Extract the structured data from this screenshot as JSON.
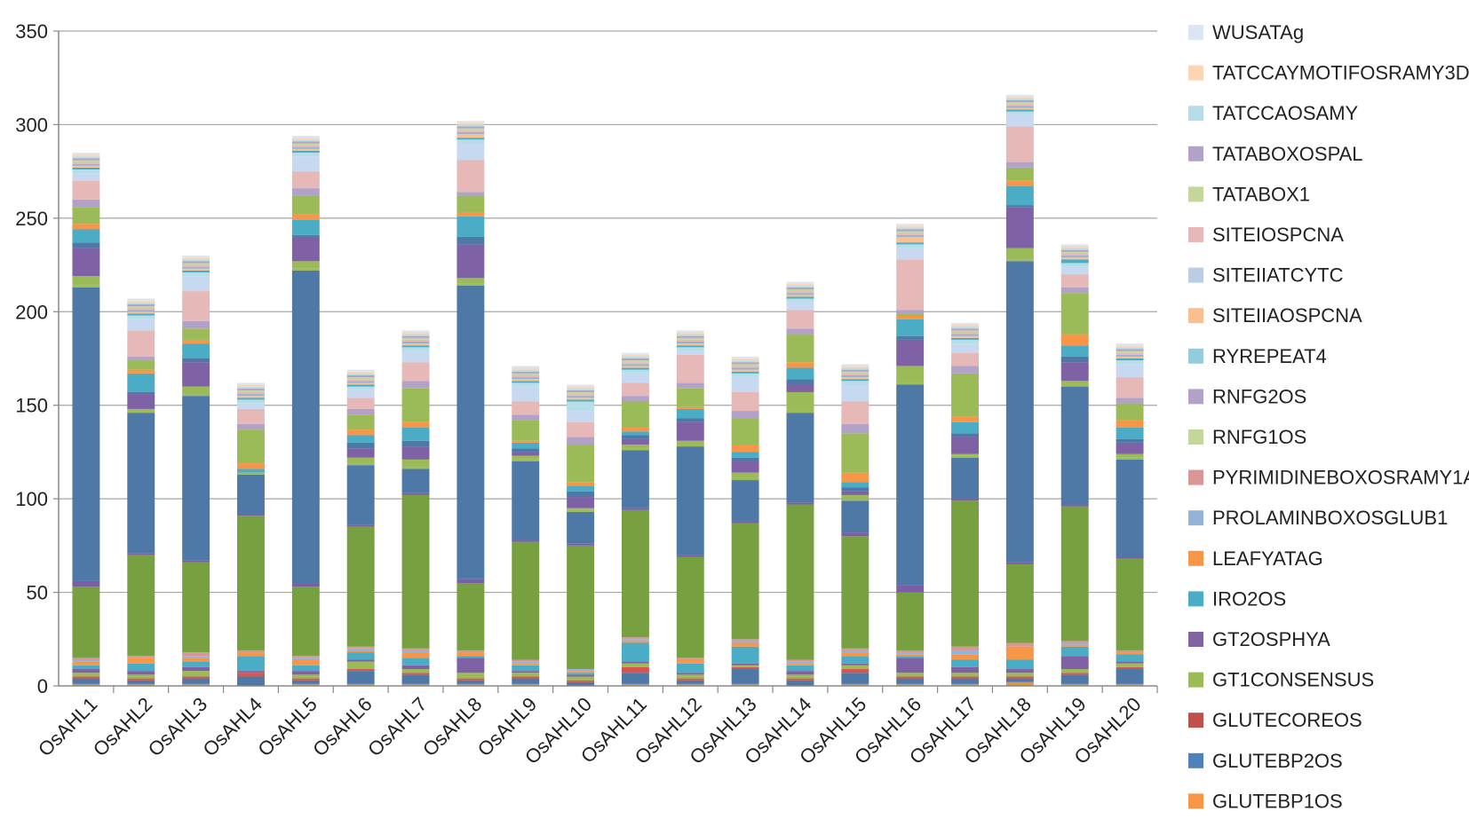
{
  "chart_data": {
    "type": "bar",
    "stacked": true,
    "title": "",
    "xlabel": "",
    "ylabel": "",
    "ylim": [
      0,
      350
    ],
    "yticks": [
      0,
      50,
      100,
      150,
      200,
      250,
      300,
      350
    ],
    "grid": true,
    "legend_position": "right",
    "categories": [
      "OsAHL1",
      "OsAHL2",
      "OsAHL3",
      "OsAHL4",
      "OsAHL5",
      "OsAHL6",
      "OsAHL7",
      "OsAHL8",
      "OsAHL9",
      "OsAHL10",
      "OsAHL11",
      "OsAHL12",
      "OsAHL13",
      "OsAHL14",
      "OsAHL15",
      "OsAHL16",
      "OsAHL17",
      "OsAHL18",
      "OsAHL19",
      "OsAHL20"
    ],
    "series": [
      {
        "name": "GLUTEBP1OS",
        "color": "#f28e2b",
        "values": [
          1,
          1,
          1,
          0,
          1,
          1,
          1,
          1,
          1,
          0,
          1,
          1,
          1,
          0,
          1,
          1,
          1,
          2,
          1,
          1
        ]
      },
      {
        "name": "GLUTEBP2OS",
        "color": "#4e79a7",
        "values": [
          3,
          2,
          3,
          5,
          2,
          7,
          5,
          2,
          3,
          2,
          6,
          2,
          8,
          3,
          6,
          3,
          3,
          2,
          5,
          8
        ]
      },
      {
        "name": "GLUTECOREOS",
        "color": "#d9534f",
        "values": [
          1,
          1,
          1,
          2,
          1,
          1,
          1,
          1,
          1,
          1,
          3,
          1,
          1,
          1,
          2,
          1,
          1,
          1,
          1,
          1
        ]
      },
      {
        "name": "GT1CONSENSUS",
        "color": "#9bbb59",
        "values": [
          2,
          2,
          3,
          0,
          2,
          4,
          2,
          3,
          2,
          2,
          2,
          2,
          1,
          2,
          2,
          2,
          2,
          2,
          2,
          2
        ]
      },
      {
        "name": "GT2OSPHYA",
        "color": "#7f62a6",
        "values": [
          2,
          2,
          2,
          1,
          2,
          1,
          2,
          8,
          1,
          1,
          1,
          1,
          1,
          2,
          1,
          8,
          3,
          2,
          7,
          1
        ]
      },
      {
        "name": "IRO2OS",
        "color": "#4bacc6",
        "values": [
          2,
          4,
          3,
          8,
          3,
          4,
          4,
          1,
          3,
          1,
          10,
          5,
          9,
          3,
          4,
          1,
          4,
          5,
          5,
          4
        ]
      },
      {
        "name": "LEAFYATAG",
        "color": "#f79646",
        "values": [
          2,
          3,
          2,
          2,
          3,
          1,
          3,
          2,
          1,
          1,
          1,
          2,
          2,
          1,
          2,
          1,
          3,
          7,
          1,
          1
        ]
      },
      {
        "name": "PROLAMINBOXOSGLUB1",
        "color": "#8eb4e3",
        "values": [
          1,
          0,
          1,
          0,
          1,
          1,
          1,
          0,
          1,
          1,
          1,
          0,
          1,
          1,
          1,
          1,
          2,
          0,
          1,
          0
        ]
      },
      {
        "name": "PYRIMIDINEBOXOSRAMY1A",
        "color": "#d99694",
        "values": [
          1,
          1,
          2,
          1,
          1,
          1,
          1,
          1,
          1,
          0,
          1,
          1,
          1,
          1,
          1,
          1,
          2,
          2,
          1,
          1
        ]
      },
      {
        "name": "RNFG1OS",
        "color": "#77a040",
        "values": [
          38,
          54,
          48,
          72,
          37,
          64,
          82,
          36,
          63,
          66,
          68,
          54,
          62,
          83,
          60,
          31,
          78,
          42,
          72,
          49
        ]
      },
      {
        "name": "RNFG2OS",
        "color": "#7b5ea7",
        "values": [
          3,
          1,
          1,
          1,
          2,
          1,
          1,
          2,
          1,
          1,
          1,
          1,
          1,
          1,
          2,
          4,
          1,
          1,
          1,
          1
        ]
      },
      {
        "name": "RYREPEAT4",
        "color": "#4bacc6",
        "values": [
          1,
          1,
          1,
          1,
          1,
          1,
          1,
          1,
          1,
          1,
          1,
          1,
          1,
          1,
          1,
          1,
          1,
          1,
          2,
          1
        ]
      },
      {
        "name": "SITEIIAOSPCNA",
        "color": "#fabf8f",
        "values": [
          1,
          1,
          1,
          1,
          1,
          1,
          1,
          2,
          1,
          1,
          1,
          1,
          1,
          1,
          1,
          3,
          1,
          1,
          1,
          1
        ]
      },
      {
        "name": "SITEIIATCYTC",
        "color": "#95b3d7",
        "values": [
          1,
          1,
          1,
          1,
          1,
          1,
          1,
          1,
          1,
          1,
          1,
          1,
          1,
          1,
          1,
          1,
          1,
          1,
          1,
          1
        ]
      },
      {
        "name": "SITEIOSPCNA",
        "color": "#e6b8b7",
        "values": [
          1,
          1,
          1,
          1,
          1,
          1,
          1,
          1,
          1,
          1,
          1,
          1,
          1,
          1,
          1,
          1,
          1,
          1,
          1,
          1
        ]
      },
      {
        "name": "TATABOX1",
        "color": "#c3d69b",
        "values": [
          1,
          1,
          1,
          1,
          1,
          1,
          1,
          1,
          1,
          1,
          1,
          1,
          1,
          1,
          1,
          1,
          1,
          1,
          1,
          1
        ]
      },
      {
        "name": "TATABOXOSPAL",
        "color": "#b3a2c7",
        "values": [
          1,
          1,
          1,
          1,
          1,
          1,
          1,
          1,
          1,
          1,
          1,
          1,
          1,
          1,
          1,
          1,
          1,
          1,
          1,
          1
        ]
      },
      {
        "name": "TATCCAOSAMY",
        "color": "#b7dee8",
        "values": [
          1,
          1,
          1,
          1,
          1,
          1,
          1,
          1,
          1,
          1,
          1,
          1,
          1,
          1,
          1,
          1,
          1,
          1,
          1,
          1
        ]
      },
      {
        "name": "TATCCAYMOTIFOSRAMY3D",
        "color": "#fcd5b4",
        "values": [
          1,
          1,
          1,
          1,
          1,
          1,
          1,
          1,
          1,
          1,
          1,
          1,
          1,
          1,
          1,
          1,
          1,
          1,
          1,
          1
        ]
      },
      {
        "name": "WUSATAg",
        "color": "#dce6f2",
        "values": [
          1,
          1,
          1,
          1,
          1,
          1,
          1,
          1,
          1,
          1,
          1,
          1,
          1,
          1,
          1,
          1,
          1,
          1,
          1,
          1
        ]
      }
    ],
    "additional_segments_note": "",
    "upper_stack": [
      {
        "color": "#4e79a7",
        "values": [
          157,
          75,
          88,
          21,
          167,
          32,
          13,
          157,
          42,
          17,
          31,
          58,
          22,
          48,
          17,
          107,
          22,
          161,
          63,
          52
        ]
      },
      {
        "color": "#9bbb59",
        "values": [
          1,
          1,
          1,
          0,
          1,
          1,
          1,
          1,
          1,
          1,
          1,
          1,
          1,
          1,
          1,
          1,
          1,
          1,
          1,
          1
        ]
      },
      {
        "color": "#9bbb59",
        "values": [
          5,
          1,
          4,
          1,
          4,
          3,
          4,
          3,
          2,
          1,
          2,
          2,
          3,
          10,
          2,
          9,
          1,
          6,
          2,
          2
        ]
      },
      {
        "color": "#7f62a6",
        "values": [
          15,
          8,
          13,
          0,
          13,
          5,
          7,
          18,
          2,
          6,
          3,
          10,
          6,
          4,
          2,
          14,
          9,
          22,
          10,
          6
        ]
      },
      {
        "color": "#4e79a7",
        "values": [
          3,
          1,
          2,
          0,
          1,
          3,
          3,
          4,
          2,
          3,
          2,
          2,
          2,
          3,
          2,
          2,
          2,
          1,
          3,
          2
        ]
      },
      {
        "color": "#4bacc6",
        "values": [
          7,
          10,
          8,
          2,
          8,
          4,
          7,
          11,
          3,
          3,
          2,
          5,
          3,
          6,
          3,
          9,
          6,
          10,
          6,
          6
        ]
      },
      {
        "color": "#f79646",
        "values": [
          3,
          2,
          2,
          3,
          3,
          3,
          3,
          2,
          1,
          2,
          2,
          1,
          4,
          3,
          5,
          2,
          3,
          3,
          6,
          4
        ]
      },
      {
        "color": "#9bbb59",
        "values": [
          9,
          5,
          6,
          18,
          10,
          8,
          18,
          9,
          11,
          20,
          14,
          10,
          14,
          15,
          21,
          1,
          23,
          7,
          22,
          9
        ]
      },
      {
        "color": "#b3a2c7",
        "values": [
          4,
          2,
          4,
          3,
          4,
          3,
          4,
          2,
          3,
          4,
          3,
          3,
          4,
          3,
          5,
          2,
          4,
          3,
          3,
          3
        ]
      },
      {
        "color": "#e6b8b7",
        "values": [
          10,
          14,
          16,
          8,
          9,
          6,
          10,
          17,
          7,
          8,
          7,
          15,
          10,
          10,
          12,
          27,
          7,
          19,
          7,
          11
        ]
      },
      {
        "color": "#c6d9f1",
        "values": [
          4,
          6,
          8,
          3,
          8,
          4,
          6,
          9,
          8,
          6,
          5,
          2,
          8,
          4,
          9,
          6,
          5,
          6,
          4,
          7
        ]
      },
      {
        "color": "#b7dee8",
        "values": [
          2,
          2,
          2,
          2,
          2,
          2,
          2,
          2,
          2,
          5,
          2,
          2,
          2,
          2,
          2,
          2,
          2,
          2,
          2,
          2
        ]
      }
    ]
  },
  "legend": [
    {
      "label": "WUSATAg",
      "color": "#dce6f2"
    },
    {
      "label": "TATCCAYMOTIFOSRAMY3D",
      "color": "#fcd5b4"
    },
    {
      "label": "TATCCAOSAMY",
      "color": "#b7dee8"
    },
    {
      "label": "TATABOXOSPAL",
      "color": "#b3a2c7"
    },
    {
      "label": "TATABOX1",
      "color": "#c3d69b"
    },
    {
      "label": "SITEIOSPCNA",
      "color": "#e6b8b7"
    },
    {
      "label": "SITEIIATCYTC",
      "color": "#b9cde5"
    },
    {
      "label": "SITEIIAOSPCNA",
      "color": "#fabf8f"
    },
    {
      "label": "RYREPEAT4",
      "color": "#93cddd"
    },
    {
      "label": "RNFG2OS",
      "color": "#b3a2c7"
    },
    {
      "label": "RNFG1OS",
      "color": "#c3d69b"
    },
    {
      "label": "PYRIMIDINEBOXOSRAMY1A",
      "color": "#d99694"
    },
    {
      "label": "PROLAMINBOXOSGLUB1",
      "color": "#95b3d7"
    },
    {
      "label": "LEAFYATAG",
      "color": "#f79646"
    },
    {
      "label": "IRO2OS",
      "color": "#4bacc6"
    },
    {
      "label": "GT2OSPHYA",
      "color": "#8064a2"
    },
    {
      "label": "GT1CONSENSUS",
      "color": "#9bbb59"
    },
    {
      "label": "GLUTECOREOS",
      "color": "#c0504d"
    },
    {
      "label": "GLUTEBP2OS",
      "color": "#4f81bd"
    },
    {
      "label": "GLUTEBP1OS",
      "color": "#f79646"
    }
  ],
  "totals": [
    281,
    221,
    247,
    176,
    303,
    180,
    197,
    301,
    182,
    171,
    182,
    196,
    195,
    230,
    187,
    246,
    214,
    321,
    252,
    202
  ]
}
